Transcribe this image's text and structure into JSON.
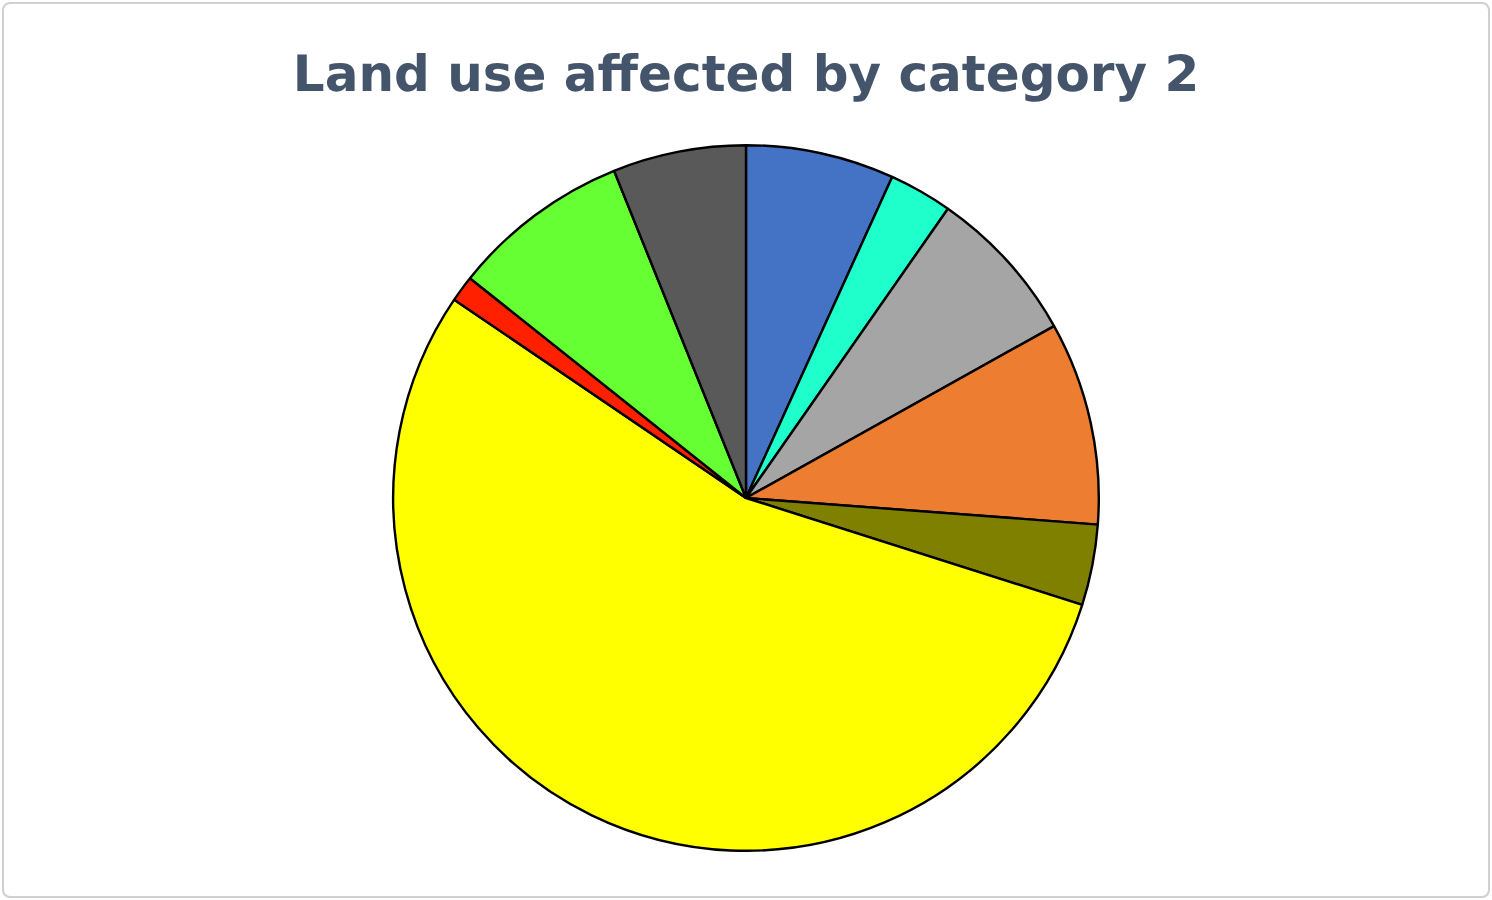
{
  "chart_data": {
    "type": "pie",
    "title": "Land use affected by category 2",
    "categories": [
      null,
      null,
      null,
      null,
      null,
      null,
      null,
      null,
      null
    ],
    "values": [
      6.8,
      2.9,
      7.2,
      9.3,
      3.7,
      54.6,
      1.2,
      8.2,
      6.1
    ],
    "colors": [
      "#4472c4",
      "#1fffcc",
      "#a5a5a5",
      "#ed7d31",
      "#808000",
      "#ffff00",
      "#ff2000",
      "#66ff33",
      "#595959"
    ],
    "legend": false
  }
}
